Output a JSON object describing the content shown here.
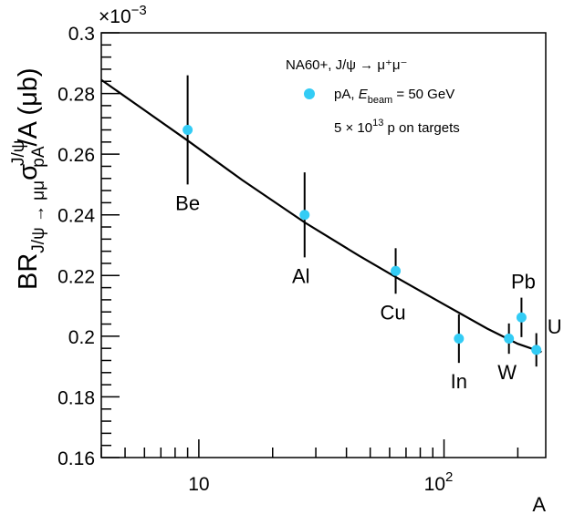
{
  "chart_data": {
    "type": "scatter",
    "title": "",
    "xlabel": "A",
    "ylabel": {
      "main": "BR",
      "main_sub": "J/ψ → μμ",
      "sigma": "σ",
      "sigma_sup": "J/ψ",
      "sigma_sub": "pA",
      "tail": "/A (μb)"
    },
    "x_scale": "log",
    "xlim": [
      4,
      260
    ],
    "ylim": [
      0.16,
      0.3
    ],
    "y_multiplier": "×10",
    "y_multiplier_exp": "−3",
    "x_tick_labels": [
      {
        "value": 10,
        "base": "10",
        "exp": ""
      },
      {
        "value": 100,
        "base": "10",
        "exp": "2"
      }
    ],
    "y_ticks": [
      0.16,
      0.18,
      0.2,
      0.22,
      0.24,
      0.26,
      0.28,
      0.3
    ],
    "y_tick_labels": [
      "0.16",
      "0.18",
      "0.2",
      "0.22",
      "0.24",
      "0.26",
      "0.28",
      "0.3"
    ],
    "series": [
      {
        "name": "pA, E_beam = 50 GeV",
        "color": "#33ccf5",
        "points": [
          {
            "label": "Be",
            "x": 9,
            "y": 0.268,
            "err": 0.018
          },
          {
            "label": "Al",
            "x": 27,
            "y": 0.24,
            "err": 0.014
          },
          {
            "label": "Cu",
            "x": 63.5,
            "y": 0.2215,
            "err": 0.0075
          },
          {
            "label": "In",
            "x": 115,
            "y": 0.1992,
            "err": 0.008
          },
          {
            "label": "W",
            "x": 184,
            "y": 0.1992,
            "err": 0.005
          },
          {
            "label": "Pb",
            "x": 207,
            "y": 0.2062,
            "err": 0.0065
          },
          {
            "label": "U",
            "x": 238,
            "y": 0.1955,
            "err": 0.0055
          }
        ]
      }
    ],
    "fit_curve": {
      "color": "#000000",
      "points": [
        {
          "x": 4,
          "y": 0.2845
        },
        {
          "x": 6,
          "y": 0.2745
        },
        {
          "x": 9,
          "y": 0.2645
        },
        {
          "x": 15,
          "y": 0.2515
        },
        {
          "x": 27,
          "y": 0.2375
        },
        {
          "x": 45,
          "y": 0.2265
        },
        {
          "x": 63.5,
          "y": 0.2195
        },
        {
          "x": 100,
          "y": 0.2105
        },
        {
          "x": 150,
          "y": 0.2025
        },
        {
          "x": 200,
          "y": 0.1975
        },
        {
          "x": 250,
          "y": 0.1948
        }
      ]
    },
    "legend": {
      "placement": "top-right",
      "line1": "NA60+, J/ψ → μ⁺μ⁻",
      "line2_prefix": "pA, ",
      "line2_e": "E",
      "line2_e_sub": "beam",
      "line2_rest": " = 50 GeV",
      "line3_prefix": "5 × 10",
      "line3_exp": "13",
      "line3_rest": " p on targets"
    }
  }
}
